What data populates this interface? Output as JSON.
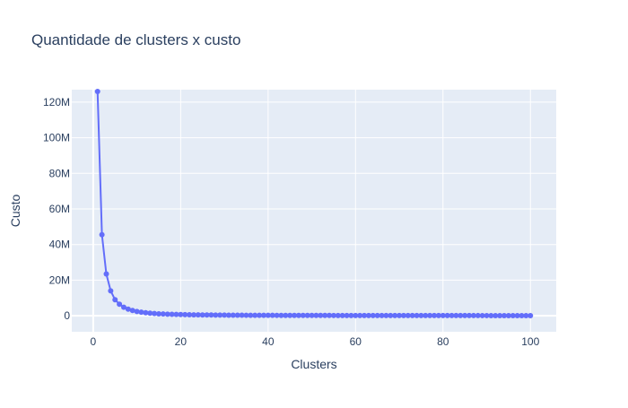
{
  "chart_data": {
    "type": "line",
    "title": "Quantidade de clusters x custo",
    "xlabel": "Clusters",
    "ylabel": "Custo",
    "xlim": [
      -4.9,
      105.9
    ],
    "ylim": [
      -9000000,
      127000000
    ],
    "xticks": [
      0,
      20,
      40,
      60,
      80,
      100
    ],
    "xtick_labels": [
      "0",
      "20",
      "40",
      "60",
      "80",
      "100"
    ],
    "yticks": [
      0,
      20000000,
      40000000,
      60000000,
      80000000,
      100000000,
      120000000
    ],
    "ytick_labels": [
      "0",
      "20M",
      "40M",
      "60M",
      "80M",
      "100M",
      "120M"
    ],
    "grid": true,
    "legend": "none",
    "colors": {
      "series": "#636efa",
      "plot_bg": "#e5ecf6",
      "grid": "#ffffff",
      "text": "#2a3f5f"
    },
    "series": [
      {
        "mode": "lines+markers",
        "x": [
          1,
          2,
          3,
          4,
          5,
          6,
          7,
          8,
          9,
          10,
          11,
          12,
          13,
          14,
          15,
          16,
          17,
          18,
          19,
          20,
          21,
          22,
          23,
          24,
          25,
          26,
          27,
          28,
          29,
          30,
          31,
          32,
          33,
          34,
          35,
          36,
          37,
          38,
          39,
          40,
          41,
          42,
          43,
          44,
          45,
          46,
          47,
          48,
          49,
          50,
          51,
          52,
          53,
          54,
          55,
          56,
          57,
          58,
          59,
          60,
          61,
          62,
          63,
          64,
          65,
          66,
          67,
          68,
          69,
          70,
          71,
          72,
          73,
          74,
          75,
          76,
          77,
          78,
          79,
          80,
          81,
          82,
          83,
          84,
          85,
          86,
          87,
          88,
          89,
          90,
          91,
          92,
          93,
          94,
          95,
          96,
          97,
          98,
          99,
          100
        ],
        "y": [
          126000000,
          45500000,
          23500000,
          14000000,
          9000000,
          6500000,
          4800000,
          3700000,
          2950000,
          2400000,
          2000000,
          1700000,
          1450000,
          1250000,
          1100000,
          980000,
          880000,
          800000,
          730000,
          670000,
          620000,
          575000,
          535000,
          500000,
          470000,
          443000,
          418000,
          396000,
          376000,
          358000,
          341000,
          326000,
          312000,
          299000,
          287000,
          276000,
          266000,
          256000,
          247000,
          239000,
          231000,
          224000,
          217000,
          211000,
          205000,
          199000,
          194000,
          189000,
          184000,
          180000,
          176000,
          172000,
          168000,
          164000,
          161000,
          158000,
          155000,
          152000,
          149000,
          146000,
          143000,
          141000,
          138000,
          136000,
          134000,
          132000,
          130000,
          128000,
          126000,
          124000,
          122000,
          120000,
          118000,
          117000,
          115000,
          114000,
          112000,
          111000,
          109000,
          108000,
          107000,
          105000,
          104000,
          103000,
          102000,
          101000,
          100000,
          99000,
          98000,
          97000,
          96000,
          95000,
          94000,
          93000,
          92000,
          91000,
          90000,
          89500,
          89000,
          88000
        ]
      }
    ]
  }
}
